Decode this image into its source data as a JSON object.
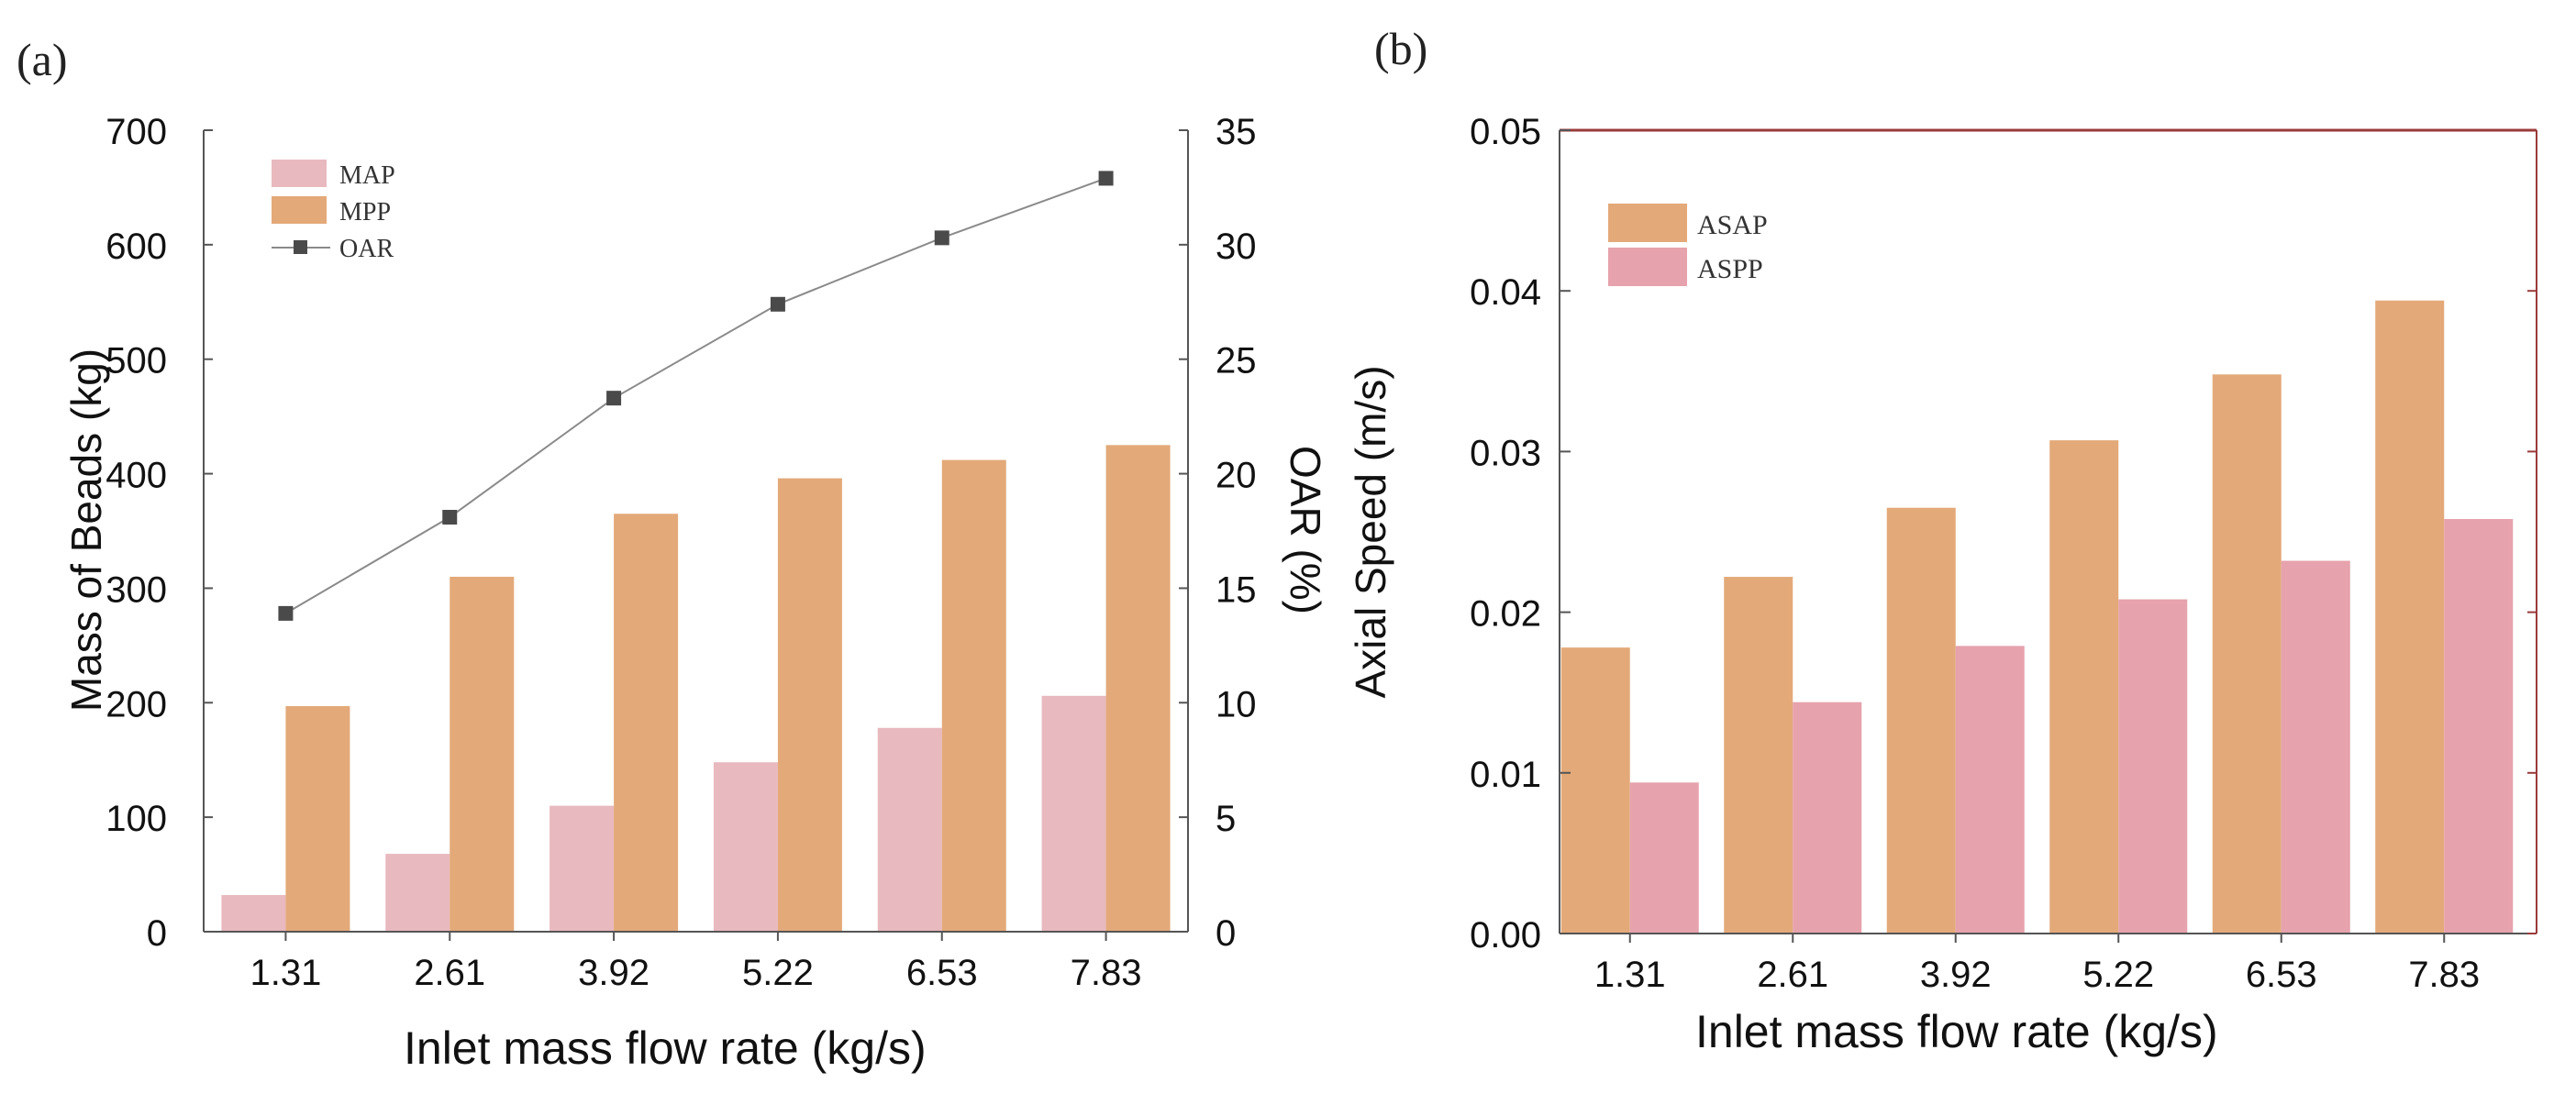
{
  "panels": {
    "a": {
      "label": "(a)"
    },
    "b": {
      "label": "(b)"
    }
  },
  "colors": {
    "map": "#E8B9BE",
    "mpp": "#E3A979",
    "asap": "#E3A979",
    "aspp": "#E6A2AD",
    "oar_line": "#8A8A8A",
    "oar_marker": "#4A4A4A",
    "axis_b": "#9A3A3A"
  },
  "chart_data": [
    {
      "type": "bar",
      "panel": "a",
      "categories": [
        "1.31",
        "2.61",
        "3.92",
        "5.22",
        "6.53",
        "7.83"
      ],
      "series": [
        {
          "name": "MAP",
          "axis": "left",
          "values": [
            32,
            68,
            110,
            148,
            178,
            206
          ]
        },
        {
          "name": "MPP",
          "axis": "left",
          "values": [
            197,
            310,
            365,
            396,
            412,
            425
          ]
        },
        {
          "name": "OAR",
          "axis": "right",
          "type": "line",
          "values": [
            13.9,
            18.1,
            23.3,
            27.4,
            30.3,
            32.9
          ]
        }
      ],
      "xlabel": "Inlet mass flow rate (kg/s)",
      "ylabel": "Mass of  Beads (kg)",
      "y2label": "OAR (%)",
      "ylim": [
        0,
        700
      ],
      "y2lim": [
        0,
        35
      ],
      "yticks": [
        "0",
        "100",
        "200",
        "300",
        "400",
        "500",
        "600",
        "700"
      ],
      "y2ticks": [
        "0",
        "5",
        "10",
        "15",
        "20",
        "25",
        "30",
        "35"
      ],
      "legend": [
        "MAP",
        "MPP",
        "OAR"
      ],
      "legend_position": "top-left"
    },
    {
      "type": "bar",
      "panel": "b",
      "categories": [
        "1.31",
        "2.61",
        "3.92",
        "5.22",
        "6.53",
        "7.83"
      ],
      "series": [
        {
          "name": "ASAP",
          "values": [
            0.0178,
            0.0222,
            0.0265,
            0.0307,
            0.0348,
            0.0394
          ]
        },
        {
          "name": "ASPP",
          "values": [
            0.0094,
            0.0144,
            0.0179,
            0.0208,
            0.0232,
            0.0258
          ]
        }
      ],
      "xlabel": "Inlet mass flow rate (kg/s)",
      "ylabel": "Axial Speed (m/s)",
      "ylim": [
        0,
        0.05
      ],
      "yticks": [
        "0.00",
        "0.01",
        "0.02",
        "0.03",
        "0.04",
        "0.05"
      ],
      "legend": [
        "ASAP",
        "ASPP"
      ],
      "legend_position": "top-left"
    }
  ]
}
